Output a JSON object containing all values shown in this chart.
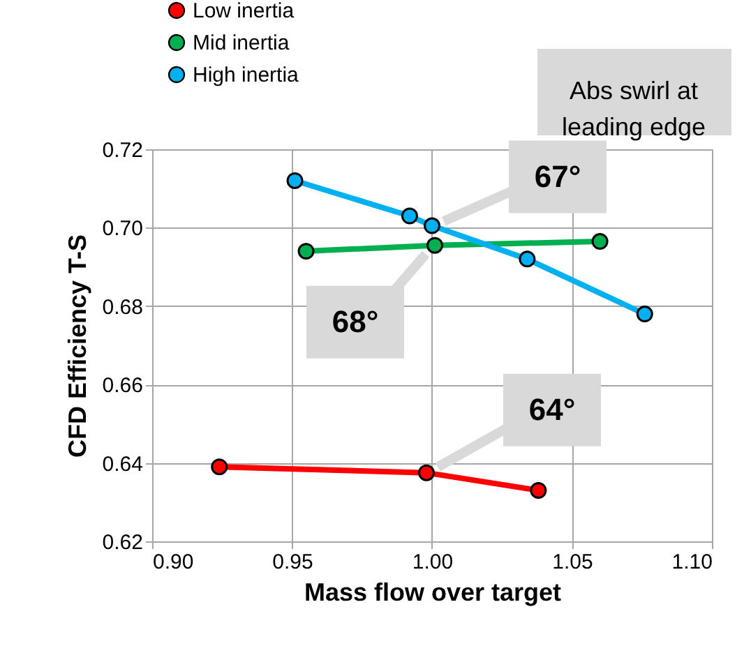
{
  "chart_data": {
    "type": "line",
    "xlabel": "Mass flow over target",
    "ylabel": "CFD Efficiency T-S",
    "xlim": [
      0.9,
      1.1
    ],
    "xticks": [
      {
        "value": 0.9,
        "label": "0.90"
      },
      {
        "value": 0.95,
        "label": "0.95"
      },
      {
        "value": 1.0,
        "label": "1.00"
      },
      {
        "value": 1.05,
        "label": "1.05"
      },
      {
        "value": 1.1,
        "label": "1.10"
      }
    ],
    "ylim": [
      0.62,
      0.72
    ],
    "yticks": [
      {
        "value": 0.62,
        "label": "0.62"
      },
      {
        "value": 0.64,
        "label": "0.64"
      },
      {
        "value": 0.66,
        "label": "0.66"
      },
      {
        "value": 0.68,
        "label": "0.68"
      },
      {
        "value": 0.7,
        "label": "0.70"
      },
      {
        "value": 0.72,
        "label": "0.72"
      }
    ],
    "grid": true,
    "legend": "top left",
    "marker": "circle",
    "line_style": "solid",
    "series": [
      {
        "name": "Low inertia",
        "color": "#ff0000",
        "x": [
          0.924,
          0.998,
          1.038
        ],
        "values": [
          0.639,
          0.6375,
          0.633
        ]
      },
      {
        "name": "Mid inertia",
        "color": "#00b050",
        "x": [
          0.955,
          1.001,
          1.06
        ],
        "values": [
          0.694,
          0.6955,
          0.6965
        ]
      },
      {
        "name": "High inertia",
        "color": "#00b0f0",
        "x": [
          0.951,
          0.992,
          1.0,
          1.034,
          1.076
        ],
        "values": [
          0.712,
          0.703,
          0.7005,
          0.692,
          0.678
        ]
      }
    ],
    "annotations": [
      "Abs swirl at\nleading edge",
      {
        "text": "67°",
        "x": 1.0,
        "y": 0.7005
      },
      {
        "text": "68°",
        "x": 1.001,
        "y": 0.6955
      },
      {
        "text": "64°",
        "x": 0.998,
        "y": 0.6375
      }
    ]
  }
}
